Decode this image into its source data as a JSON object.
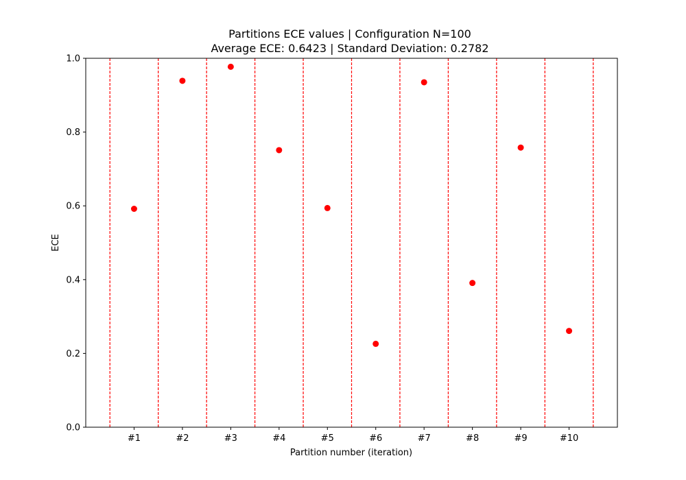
{
  "chart_data": {
    "type": "scatter",
    "title": "Partitions ECE values | Configuration N=100",
    "subtitle": "Average ECE: 0.6423 | Standard Deviation: 0.2782",
    "xlabel": "Partition number (iteration)",
    "ylabel": "ECE",
    "ylim": [
      0.0,
      1.0
    ],
    "xlim": [
      0.0,
      11.0
    ],
    "y_ticks": [
      "0.0",
      "0.2",
      "0.4",
      "0.6",
      "0.8",
      "1.0"
    ],
    "categories": [
      "#1",
      "#2",
      "#3",
      "#4",
      "#5",
      "#6",
      "#7",
      "#8",
      "#9",
      "#10"
    ],
    "values": [
      0.592,
      0.939,
      0.977,
      0.751,
      0.594,
      0.226,
      0.935,
      0.391,
      0.758,
      0.261
    ],
    "separators": [
      0.5,
      1.5,
      2.5,
      3.5,
      4.5,
      5.5,
      6.5,
      7.5,
      8.5,
      9.5,
      10.5
    ],
    "marker_color": "#ff0000",
    "separator_color": "#ff0000",
    "grid": false
  }
}
